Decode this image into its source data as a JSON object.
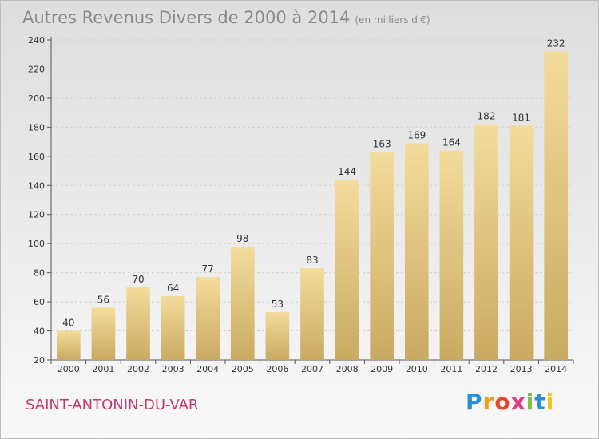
{
  "header": {
    "title": "Autres Revenus Divers de 2000 à 2014",
    "unit": "(en milliers d'€)"
  },
  "footer": {
    "place": "SAINT-ANTONIN-DU-VAR",
    "logo_text": "Proxiti"
  },
  "colors": {
    "bar_top": "#f4dc9c",
    "bar_bottom": "#c9aa62",
    "place_text": "#c4366c",
    "title_text": "#8a8a8a"
  },
  "chart_data": {
    "type": "bar",
    "categories": [
      "2000",
      "2001",
      "2002",
      "2003",
      "2004",
      "2005",
      "2006",
      "2007",
      "2008",
      "2009",
      "2010",
      "2011",
      "2012",
      "2013",
      "2014"
    ],
    "values": [
      40,
      56,
      70,
      64,
      77,
      98,
      53,
      83,
      144,
      163,
      169,
      164,
      182,
      181,
      232
    ],
    "ylim": [
      20,
      240
    ],
    "yticks": [
      20,
      40,
      60,
      80,
      100,
      120,
      140,
      160,
      180,
      200,
      220,
      240
    ],
    "grid": true
  }
}
